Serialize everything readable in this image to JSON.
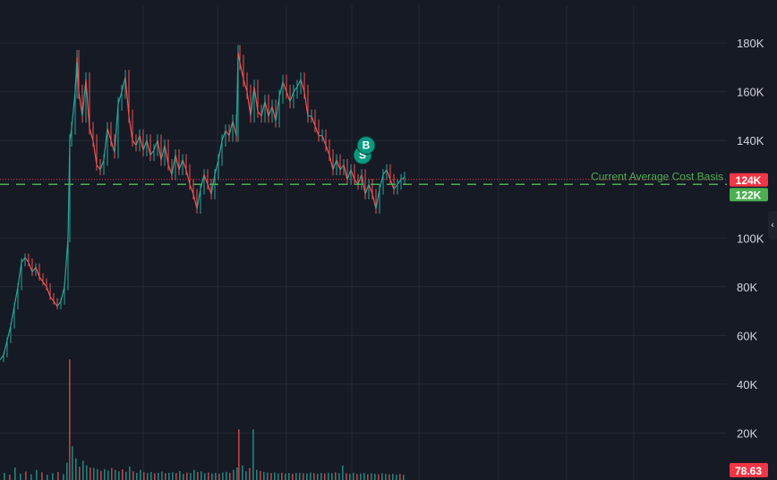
{
  "chart_data": {
    "type": "candlestick",
    "xlabel": "",
    "ylabel": "",
    "ylim": [
      0,
      190000
    ],
    "grid": true,
    "y_ticks": [
      {
        "value": 20000,
        "label": "20K"
      },
      {
        "value": 40000,
        "label": "40K"
      },
      {
        "value": 60000,
        "label": "60K"
      },
      {
        "value": 80000,
        "label": "80K"
      },
      {
        "value": 100000,
        "label": "100K"
      },
      {
        "value": 140000,
        "label": "140K"
      },
      {
        "value": 160000,
        "label": "160K"
      },
      {
        "value": 180000,
        "label": "180K"
      }
    ],
    "price_series": [
      [
        0,
        50000
      ],
      [
        4,
        52000
      ],
      [
        8,
        58000
      ],
      [
        12,
        64000
      ],
      [
        16,
        72000
      ],
      [
        20,
        80000
      ],
      [
        24,
        90000
      ],
      [
        28,
        92000
      ],
      [
        32,
        90000
      ],
      [
        36,
        86000
      ],
      [
        40,
        88000
      ],
      [
        44,
        84000
      ],
      [
        48,
        82000
      ],
      [
        52,
        80000
      ],
      [
        56,
        76000
      ],
      [
        60,
        74000
      ],
      [
        64,
        72000
      ],
      [
        68,
        74000
      ],
      [
        72,
        80000
      ],
      [
        76,
        100000
      ],
      [
        78,
        140000
      ],
      [
        80,
        145000
      ],
      [
        84,
        160000
      ],
      [
        86,
        174000
      ],
      [
        88,
        160000
      ],
      [
        92,
        150000
      ],
      [
        96,
        165000
      ],
      [
        100,
        145000
      ],
      [
        104,
        140000
      ],
      [
        108,
        130000
      ],
      [
        112,
        128000
      ],
      [
        116,
        132000
      ],
      [
        120,
        145000
      ],
      [
        124,
        140000
      ],
      [
        128,
        135000
      ],
      [
        132,
        155000
      ],
      [
        136,
        160000
      ],
      [
        140,
        166000
      ],
      [
        144,
        150000
      ],
      [
        148,
        140000
      ],
      [
        152,
        138000
      ],
      [
        156,
        142000
      ],
      [
        160,
        136000
      ],
      [
        164,
        140000
      ],
      [
        168,
        134000
      ],
      [
        172,
        136000
      ],
      [
        176,
        140000
      ],
      [
        180,
        132000
      ],
      [
        184,
        138000
      ],
      [
        188,
        130000
      ],
      [
        192,
        126000
      ],
      [
        196,
        134000
      ],
      [
        200,
        128000
      ],
      [
        204,
        132000
      ],
      [
        208,
        128000
      ],
      [
        212,
        122000
      ],
      [
        216,
        118000
      ],
      [
        220,
        112000
      ],
      [
        224,
        120000
      ],
      [
        228,
        126000
      ],
      [
        232,
        122000
      ],
      [
        236,
        118000
      ],
      [
        240,
        126000
      ],
      [
        244,
        132000
      ],
      [
        248,
        140000
      ],
      [
        252,
        144000
      ],
      [
        256,
        142000
      ],
      [
        260,
        148000
      ],
      [
        264,
        142000
      ],
      [
        266,
        176000
      ],
      [
        268,
        172000
      ],
      [
        272,
        165000
      ],
      [
        276,
        160000
      ],
      [
        280,
        150000
      ],
      [
        284,
        162000
      ],
      [
        288,
        152000
      ],
      [
        292,
        150000
      ],
      [
        296,
        156000
      ],
      [
        300,
        150000
      ],
      [
        304,
        154000
      ],
      [
        308,
        148000
      ],
      [
        312,
        158000
      ],
      [
        316,
        164000
      ],
      [
        320,
        160000
      ],
      [
        324,
        156000
      ],
      [
        328,
        160000
      ],
      [
        332,
        162000
      ],
      [
        336,
        165000
      ],
      [
        340,
        160000
      ],
      [
        344,
        150000
      ],
      [
        348,
        150000
      ],
      [
        352,
        146000
      ],
      [
        356,
        142000
      ],
      [
        360,
        142000
      ],
      [
        364,
        138000
      ],
      [
        368,
        134000
      ],
      [
        372,
        128000
      ],
      [
        376,
        132000
      ],
      [
        380,
        128000
      ],
      [
        384,
        130000
      ],
      [
        388,
        124000
      ],
      [
        392,
        128000
      ],
      [
        396,
        124000
      ],
      [
        400,
        122000
      ],
      [
        404,
        126000
      ],
      [
        408,
        118000
      ],
      [
        412,
        122000
      ],
      [
        416,
        118000
      ],
      [
        420,
        112000
      ],
      [
        424,
        120000
      ],
      [
        428,
        126000
      ],
      [
        432,
        128000
      ],
      [
        436,
        124000
      ],
      [
        440,
        120000
      ],
      [
        444,
        122000
      ],
      [
        448,
        124000
      ],
      [
        452,
        125000
      ]
    ],
    "volume_series": [
      [
        4,
        3000
      ],
      [
        10,
        2200
      ],
      [
        16,
        5200
      ],
      [
        22,
        2600
      ],
      [
        28,
        3500
      ],
      [
        34,
        2400
      ],
      [
        40,
        4200
      ],
      [
        46,
        3200
      ],
      [
        52,
        2200
      ],
      [
        58,
        2800
      ],
      [
        64,
        3300
      ],
      [
        70,
        2500
      ],
      [
        74,
        7200
      ],
      [
        77,
        50000
      ],
      [
        80,
        14000
      ],
      [
        84,
        9000
      ],
      [
        88,
        5500
      ],
      [
        92,
        8000
      ],
      [
        96,
        6000
      ],
      [
        100,
        5200
      ],
      [
        104,
        5000
      ],
      [
        108,
        4500
      ],
      [
        112,
        3800
      ],
      [
        116,
        4500
      ],
      [
        120,
        3900
      ],
      [
        124,
        5000
      ],
      [
        128,
        4200
      ],
      [
        132,
        3600
      ],
      [
        136,
        4400
      ],
      [
        140,
        3400
      ],
      [
        144,
        5600
      ],
      [
        148,
        3600
      ],
      [
        152,
        3000
      ],
      [
        156,
        4200
      ],
      [
        160,
        3200
      ],
      [
        164,
        2900
      ],
      [
        168,
        3300
      ],
      [
        172,
        2800
      ],
      [
        176,
        3000
      ],
      [
        180,
        3500
      ],
      [
        184,
        2800
      ],
      [
        188,
        3000
      ],
      [
        192,
        3200
      ],
      [
        196,
        2900
      ],
      [
        200,
        3700
      ],
      [
        204,
        2500
      ],
      [
        208,
        3100
      ],
      [
        212,
        2900
      ],
      [
        216,
        4200
      ],
      [
        220,
        3300
      ],
      [
        224,
        3600
      ],
      [
        228,
        2800
      ],
      [
        232,
        3100
      ],
      [
        236,
        2700
      ],
      [
        240,
        3000
      ],
      [
        244,
        2600
      ],
      [
        248,
        3100
      ],
      [
        252,
        3400
      ],
      [
        256,
        3000
      ],
      [
        260,
        4200
      ],
      [
        264,
        5200
      ],
      [
        266,
        21000
      ],
      [
        270,
        6000
      ],
      [
        274,
        3600
      ],
      [
        278,
        5000
      ],
      [
        282,
        21000
      ],
      [
        286,
        4200
      ],
      [
        290,
        3800
      ],
      [
        294,
        3400
      ],
      [
        298,
        3100
      ],
      [
        302,
        2900
      ],
      [
        306,
        3100
      ],
      [
        310,
        2700
      ],
      [
        314,
        3000
      ],
      [
        318,
        2700
      ],
      [
        322,
        2900
      ],
      [
        326,
        2600
      ],
      [
        330,
        2900
      ],
      [
        334,
        3000
      ],
      [
        338,
        2800
      ],
      [
        342,
        2700
      ],
      [
        346,
        3100
      ],
      [
        350,
        2800
      ],
      [
        354,
        2600
      ],
      [
        358,
        2900
      ],
      [
        362,
        2700
      ],
      [
        366,
        3000
      ],
      [
        370,
        2800
      ],
      [
        374,
        3200
      ],
      [
        378,
        2900
      ],
      [
        382,
        6000
      ],
      [
        386,
        2800
      ],
      [
        390,
        2600
      ],
      [
        394,
        3000
      ],
      [
        398,
        2500
      ],
      [
        402,
        2700
      ],
      [
        406,
        2900
      ],
      [
        410,
        2400
      ],
      [
        414,
        2800
      ],
      [
        418,
        2600
      ],
      [
        422,
        2400
      ],
      [
        426,
        2800
      ],
      [
        430,
        2500
      ],
      [
        434,
        2300
      ],
      [
        438,
        2600
      ],
      [
        442,
        2200
      ],
      [
        446,
        2500
      ],
      [
        450,
        2200
      ]
    ],
    "current_price": {
      "value": 124000,
      "label": "124K",
      "color": "#f23645"
    },
    "average_cost_basis": {
      "value": 122000,
      "label": "122K",
      "text": "Current Average Cost Basis",
      "color": "#4caf50"
    },
    "volume_indicator": {
      "value": 78.63,
      "label": "78.63",
      "color": "#f23645"
    },
    "markers": [
      {
        "x": 405,
        "y": 134000,
        "label": "S",
        "color": "#089981"
      },
      {
        "x": 409,
        "y": 138000,
        "label": "B",
        "color": "#089981"
      }
    ],
    "colors": {
      "background": "#161a25",
      "grid": "#242833",
      "up": "#26a69a",
      "down": "#ef5350",
      "axis_text": "#d1d4dc"
    }
  },
  "ui": {
    "collapse_icon": "chevron-left-icon",
    "collapse_glyph": "‹"
  }
}
